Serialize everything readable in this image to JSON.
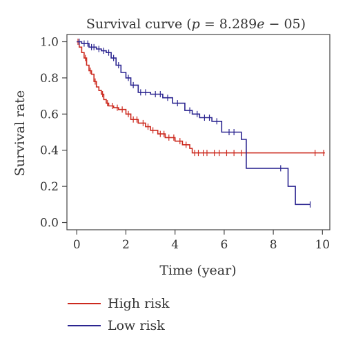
{
  "chart_data": {
    "type": "line",
    "title": "Survival curve (",
    "title_p_symbol": "p",
    "title_eq": " = 8.289",
    "title_e_symbol": "e",
    "title_exp": " − 05)",
    "xlabel": "Time (year)",
    "ylabel": "Survival rate",
    "xlim": [
      -0.4,
      10.3
    ],
    "ylim": [
      -0.04,
      1.04
    ],
    "x_ticks": [
      0,
      2,
      4,
      6,
      8,
      10
    ],
    "y_ticks": [
      0.0,
      0.2,
      0.4,
      0.6,
      0.8,
      1.0
    ],
    "x_tick_labels": [
      "0",
      "2",
      "4",
      "6",
      "8",
      "10"
    ],
    "y_tick_labels": [
      "0.0",
      "0.2",
      "0.4",
      "0.6",
      "0.8",
      "1.0"
    ],
    "grid": false,
    "legend_position": "bottom-left",
    "series": [
      {
        "name": "High risk",
        "color": "#cc2a1f",
        "x": [
          0,
          0.1,
          0.2,
          0.3,
          0.4,
          0.5,
          0.6,
          0.7,
          0.8,
          0.9,
          1.0,
          1.1,
          1.2,
          1.3,
          1.5,
          1.7,
          2.0,
          2.2,
          2.5,
          2.8,
          3.0,
          3.3,
          3.6,
          4.0,
          4.3,
          4.6,
          4.7,
          6.8,
          10.1
        ],
        "y": [
          1.0,
          0.97,
          0.94,
          0.91,
          0.87,
          0.84,
          0.82,
          0.78,
          0.75,
          0.73,
          0.71,
          0.68,
          0.66,
          0.645,
          0.635,
          0.625,
          0.6,
          0.57,
          0.55,
          0.53,
          0.51,
          0.49,
          0.47,
          0.45,
          0.43,
          0.41,
          0.385,
          0.385,
          0.385
        ],
        "censor_x": [
          0.05,
          0.35,
          0.55,
          0.75,
          1.05,
          1.25,
          1.45,
          1.65,
          1.85,
          2.1,
          2.3,
          2.45,
          2.7,
          2.9,
          3.1,
          3.4,
          3.55,
          3.75,
          3.95,
          4.2,
          4.45,
          4.8,
          4.95,
          5.15,
          5.3,
          5.6,
          5.8,
          6.1,
          6.4,
          6.7,
          6.9,
          9.7,
          10.05
        ]
      },
      {
        "name": "Low risk",
        "color": "#2b2590",
        "x": [
          0,
          0.2,
          0.5,
          0.8,
          1.0,
          1.2,
          1.4,
          1.6,
          1.8,
          2.0,
          2.2,
          2.5,
          3.0,
          3.5,
          3.9,
          4.4,
          4.7,
          5.0,
          5.5,
          5.9,
          6.7,
          6.9,
          8.0,
          8.6,
          8.9,
          9.5
        ],
        "y": [
          1.0,
          0.99,
          0.97,
          0.96,
          0.95,
          0.94,
          0.91,
          0.87,
          0.83,
          0.8,
          0.76,
          0.72,
          0.71,
          0.69,
          0.66,
          0.62,
          0.6,
          0.58,
          0.56,
          0.5,
          0.46,
          0.3,
          0.3,
          0.2,
          0.1,
          0.1
        ],
        "censor_x": [
          0.1,
          0.3,
          0.45,
          0.6,
          0.7,
          0.9,
          1.1,
          1.3,
          1.5,
          1.7,
          2.1,
          2.3,
          2.6,
          2.8,
          3.2,
          3.4,
          3.7,
          4.1,
          4.6,
          4.9,
          5.2,
          5.4,
          5.7,
          6.2,
          6.4,
          8.3,
          9.5
        ]
      }
    ]
  }
}
